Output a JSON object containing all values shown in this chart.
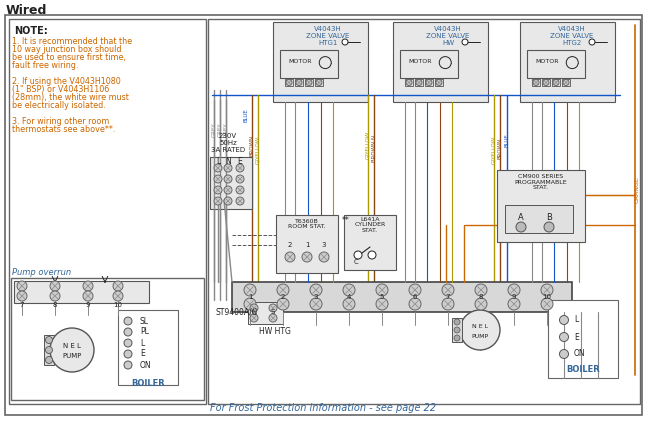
{
  "title": "Wired",
  "bg_color": "#ffffff",
  "note_title": "NOTE:",
  "note_lines": [
    "1. It is recommended that the",
    "10 way junction box should",
    "be used to ensure first time,",
    "fault free wiring.",
    "",
    "2. If using the V4043H1080",
    "(1\" BSP) or V4043H1106",
    "(28mm), the white wire must",
    "be electrically isolated.",
    "",
    "3. For wiring other room",
    "thermostats see above**."
  ],
  "pump_overrun": "Pump overrun",
  "boiler_label": "BOILER",
  "zone_valve_1": "V4043H\nZONE VALVE\nHTG1",
  "zone_valve_2": "V4043H\nZONE VALVE\nHW",
  "zone_valve_3": "V4043H\nZONE VALVE\nHTG2",
  "frost_text": "For Frost Protection information - see page 22",
  "supply_label": "230V\n50Hz\n3A RATED",
  "st9400": "ST9400A/C",
  "hw_htg": "HW HTG",
  "boiler_right": "BOILER",
  "cm900": "CM900 SERIES\nPROGRAMMABLE\nSTAT.",
  "t6360b": "T6360B\nROOM STAT.",
  "l641a": "L641A\nCYLINDER\nSTAT.",
  "motor": "MOTOR",
  "nel": "N E L",
  "pump": "PUMP",
  "grey": "#888888",
  "blue": "#1155cc",
  "brown": "#8B4513",
  "gyellow": "#aa9900",
  "orange": "#cc6600",
  "label_blue": "#336699",
  "note_orange": "#cc6600",
  "black": "#222222",
  "lt_gray": "#e8e8e8",
  "med_gray": "#cccccc",
  "dk_gray": "#555555"
}
